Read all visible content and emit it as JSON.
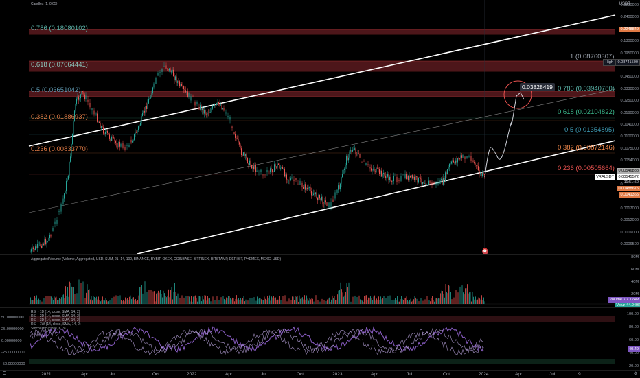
{
  "header": {
    "title": "Candles (1, 0.05)",
    "currency": "USDT"
  },
  "price_axis": {
    "ticks": [
      "0.3200000",
      "0.2400000",
      "0.1800000",
      "0.1300000",
      "0.0950000",
      "0.0650000",
      "0.0450000",
      "0.0330000",
      "0.0250000",
      "0.0190000",
      "0.0140000",
      "0.0100000",
      "0.0075000",
      "0.0054000",
      "0.0040000",
      "0.0030000",
      "0.0023000",
      "0.0017000",
      "0.0012000",
      "0.0009000",
      "0.0006500"
    ],
    "high_label": "High",
    "high_value": "0.08741500",
    "symbol_label": "VRALSDT",
    "symbol_value": "0.00545572",
    "price_box_1": "0.00546888",
    "countdown": "11:51:50",
    "orange_box_1": "0.2248849",
    "orange_box_2": "0.00488675",
    "orange_box_3": "0.0041365"
  },
  "fib_left": [
    {
      "text": "0.786 (0.18080102)",
      "color": "#5ab1a6"
    },
    {
      "text": "0.618 (0.07064441)",
      "color": "#8cc4b9"
    },
    {
      "text": "0.5 (0.03651042)",
      "color": "#5e98b0"
    },
    {
      "text": "0.382 (0.01886937)",
      "color": "#e07a45"
    },
    {
      "text": "0.236 (0.00833770)",
      "color": "#e07a45"
    }
  ],
  "fib_right": [
    {
      "text": "1 (0.08760307)",
      "color": "#9ca3ad"
    },
    {
      "text": "0.786 (0.03940780)",
      "color": "#5ab1a6"
    },
    {
      "text": "0.618 (0.02104822)",
      "color": "#39b58a"
    },
    {
      "text": "0.5 (0.01354895)",
      "color": "#3f9fb9"
    },
    {
      "text": "0.382 (0.00872146)",
      "color": "#f0874a"
    },
    {
      "text": "0.236 (0.00505664)",
      "color": "#e8524f"
    }
  ],
  "target_label": "0.03828419",
  "volume_pane": {
    "title": "Aggregated Volume (Volume, Aggregated, USD, SUM, 21, 14, 100, BINANCE, BYBIT, OKEX, COINBASE, BITFINEX, BITSTAMP, DERIBIT, PHEMEX, MEXC, USD)",
    "ticks": [
      "80M",
      "60M",
      "40M",
      "20M"
    ],
    "ma_label": "Volume MA",
    "ma_value": "7.124M",
    "vol_label": "Volume",
    "vol_value": "44.049K"
  },
  "rsi_pane": {
    "lines": [
      "RSI - 1D (14, close, SMA, 14, 2)",
      "RSI - 2D (14, close, SMA, 14, 2)",
      "RSI - 3D (14, close, SMA, 14, 2)",
      "RSI - 1W (14, close, SMA, 14, 2)",
      "Stochastic (close, 6, 3)"
    ],
    "left_ticks": [
      "50.00000000",
      "25.00000000",
      "0.00000000",
      "-25.00000000",
      "-50.00000000"
    ],
    "right_ticks": [
      "100.00",
      "80.00",
      "60.00",
      "40.00",
      "20.00"
    ],
    "value_box": "40.49"
  },
  "time_axis": [
    "2021",
    "Apr",
    "Jul",
    "Oct",
    "2022",
    "Apr",
    "Jul",
    "Oct",
    "2023",
    "Apr",
    "Jul",
    "Oct",
    "2024",
    "Apr",
    "Jul",
    "9"
  ],
  "colors": {
    "up": "#26a69a",
    "down": "#ef5350",
    "fib_band": "#5a1a1f",
    "channel": "#ffffff",
    "rsi": "#7e57c2"
  }
}
